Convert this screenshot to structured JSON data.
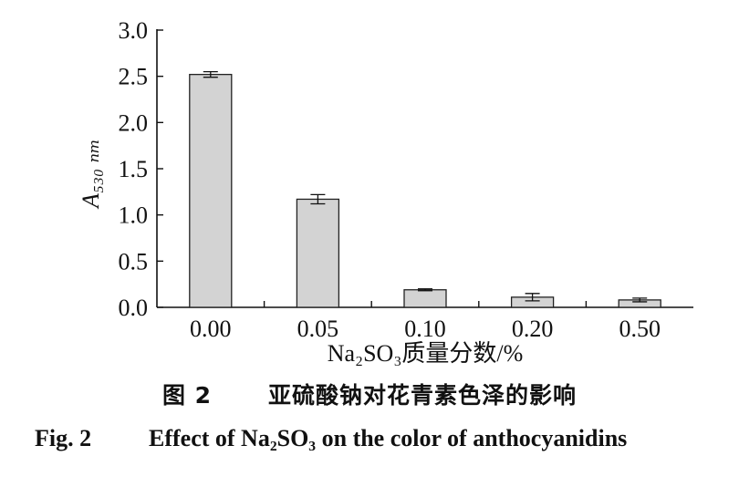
{
  "chart_data": {
    "type": "bar",
    "categories": [
      "0.00",
      "0.05",
      "0.10",
      "0.20",
      "0.50"
    ],
    "values": [
      2.52,
      1.17,
      0.19,
      0.11,
      0.08
    ],
    "errors": [
      0.03,
      0.05,
      0.01,
      0.04,
      0.02
    ],
    "ylim": [
      0,
      3.0
    ],
    "yticks": [
      "0.0",
      "0.5",
      "1.0",
      "1.5",
      "2.0",
      "2.5",
      "3.0"
    ],
    "xlabel": "Na₂SO₃质量分数/%",
    "ylabel": "A₅₃₀ ₙₘ",
    "bar_color": "#d3d3d3",
    "bar_edge_color": "#222222"
  },
  "caption": {
    "cn_fig": "图 2",
    "cn_title": "亚硫酸钠对花青素色泽的影响",
    "en_fig": "Fig. 2",
    "en_title": "Effect of Na₂SO₃ on the color of anthocyanidins"
  }
}
